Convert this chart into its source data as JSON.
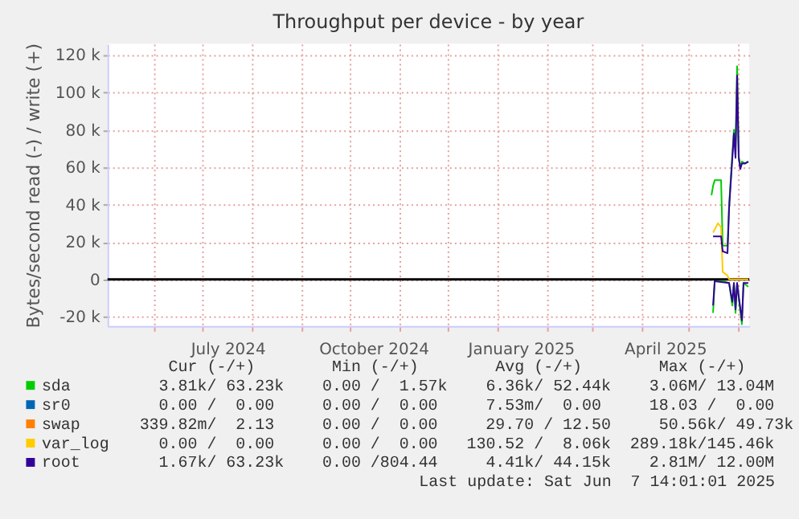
{
  "chart_data": {
    "type": "line",
    "title": "Throughput per device - by year",
    "ylabel": "Bytes/second read (-) / write (+)",
    "xlim": [
      "2024-05-03",
      "2025-06-07T14:00"
    ],
    "xticks": [
      {
        "value": "2024-06-01",
        "label": null
      },
      {
        "value": "2024-07-01",
        "label": null
      },
      {
        "value": "2024-07-17",
        "label": "July 2024"
      },
      {
        "value": "2024-08-01",
        "label": null
      },
      {
        "value": "2024-09-01",
        "label": null
      },
      {
        "value": "2024-10-01",
        "label": null
      },
      {
        "value": "2024-10-16",
        "label": "October 2024"
      },
      {
        "value": "2024-11-01",
        "label": null
      },
      {
        "value": "2024-12-01",
        "label": null
      },
      {
        "value": "2025-01-01",
        "label": null
      },
      {
        "value": "2025-01-16",
        "label": "January 2025"
      },
      {
        "value": "2025-02-01",
        "label": null
      },
      {
        "value": "2025-03-01",
        "label": null
      },
      {
        "value": "2025-04-01",
        "label": null
      },
      {
        "value": "2025-04-16",
        "label": "April 2025"
      },
      {
        "value": "2025-05-01",
        "label": null
      },
      {
        "value": "2025-06-01",
        "label": null
      }
    ],
    "ylim": [
      -25000,
      126000
    ],
    "yticks": [
      {
        "value": -20000,
        "label": "-20 k"
      },
      0,
      {
        "value": 20000,
        "label": "20 k"
      },
      {
        "value": 40000,
        "label": "40 k"
      },
      {
        "value": 60000,
        "label": "60 k"
      },
      {
        "value": 80000,
        "label": "80 k"
      },
      {
        "value": 100000,
        "label": "100 k"
      },
      {
        "value": 120000,
        "label": "120 k"
      }
    ],
    "grid": true,
    "legend": "bottom",
    "ref_lines": [
      {
        "axis": "y",
        "value": 0,
        "color": "#000000"
      }
    ],
    "series": [
      {
        "name": "sda",
        "color": "#00cc00",
        "x": [
          "2025-05-15",
          "2025-05-16",
          "2025-05-17",
          "2025-05-21",
          "2025-05-22",
          "2025-05-25",
          "2025-05-26",
          "2025-05-29",
          "2025-05-30",
          "2025-05-31",
          "2025-06-01",
          "2025-06-02",
          "2025-06-03",
          "2025-06-05",
          "2025-06-07"
        ],
        "values": [
          45000,
          50000,
          53000,
          53000,
          18000,
          18000,
          40000,
          80000,
          70000,
          114000,
          66000,
          60000,
          63000,
          62000,
          63000
        ]
      },
      {
        "color": "#00cc00",
        "x": [
          "2025-05-16",
          "2025-05-17",
          "2025-05-22",
          "2025-05-26",
          "2025-05-28",
          "2025-05-29",
          "2025-05-30",
          "2025-05-31",
          "2025-06-01",
          "2025-06-03",
          "2025-06-04",
          "2025-06-07"
        ],
        "values": [
          -18000,
          -1000,
          -1000,
          -2000,
          -14000,
          -2000,
          -18000,
          -2000,
          -10000,
          -24000,
          -2000,
          -4000
        ]
      },
      {
        "name": "sr0",
        "color": "#0066b3"
      },
      {
        "name": "swap",
        "color": "#ff8000"
      },
      {
        "name": "var_log",
        "color": "#ffcc00",
        "x": [
          "2025-05-16",
          "2025-05-19",
          "2025-05-21",
          "2025-05-22",
          "2025-05-25",
          "2025-05-26",
          "2025-06-07"
        ],
        "values": [
          25000,
          30000,
          28000,
          4000,
          2000,
          0,
          0
        ]
      },
      {
        "name": "root",
        "color": "#330099",
        "x": [
          "2025-05-16",
          "2025-05-21",
          "2025-05-22",
          "2025-05-25",
          "2025-05-26",
          "2025-05-29",
          "2025-05-30",
          "2025-05-31",
          "2025-06-01",
          "2025-06-02",
          "2025-06-03",
          "2025-06-05",
          "2025-06-07"
        ],
        "values": [
          23000,
          23000,
          15000,
          14000,
          38000,
          78000,
          65000,
          109000,
          65000,
          59000,
          62000,
          62000,
          63000
        ]
      },
      {
        "color": "#330099",
        "x": [
          "2025-05-16",
          "2025-05-17",
          "2025-05-26",
          "2025-05-28",
          "2025-05-29",
          "2025-05-30",
          "2025-05-31",
          "2025-06-01",
          "2025-06-03",
          "2025-06-04",
          "2025-06-07"
        ],
        "values": [
          -14000,
          -1000,
          -2000,
          -12000,
          -2000,
          -16000,
          -2000,
          -9000,
          -22000,
          -2000,
          -2000
        ]
      }
    ],
    "annotations": [
      "   Cur (-/+)        Min (-/+)        Avg (-/+)        Max (-/+)",
      "  3.81k/ 63.23k    0.00 /  1.57k    6.36k/ 52.44k    3.06M/ 13.04M",
      "  0.00 /  0.00     0.00 /  0.00     7.53m/  0.00     18.03 /  0.00",
      "339.82m/  2.13     0.00 /  0.00     29.70 / 12.50     50.56k/ 49.73k",
      "  0.00 /  0.00     0.00 /  0.00   130.52 /  8.06k  289.18k/145.46k",
      "  1.67k/ 63.23k    0.00 /804.44     4.41k/ 44.15k    2.81M/ 12.00M",
      "Last update: Sat Jun  7 14:01:01 2025"
    ]
  }
}
